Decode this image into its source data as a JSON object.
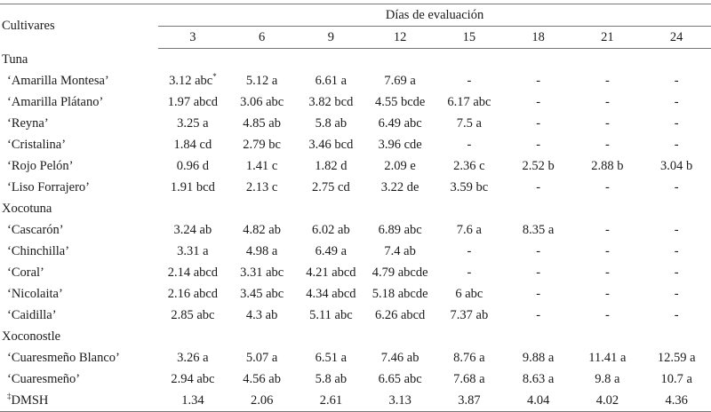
{
  "header": {
    "cultivares": "Cultivares",
    "dias": "Días de evaluación",
    "days": [
      "3",
      "6",
      "9",
      "12",
      "15",
      "18",
      "21",
      "24"
    ]
  },
  "groups": [
    {
      "name": "Tuna",
      "rows": [
        {
          "name": "‘Amarilla Montesa’",
          "values": [
            "3.12 abc",
            "5.12 a",
            "6.61 a",
            "7.69 a",
            "-",
            "-",
            "-",
            "-"
          ],
          "sup": "*"
        },
        {
          "name": "‘Amarilla Plátano’",
          "values": [
            "1.97 abcd",
            "3.06 abc",
            "3.82 bcd",
            "4.55 bcde",
            "6.17 abc",
            "-",
            "-",
            "-"
          ]
        },
        {
          "name": "‘Reyna’",
          "values": [
            "3.25 a",
            "4.85 ab",
            "5.8 ab",
            "6.49 abc",
            "7.5 a",
            "-",
            "-",
            "-"
          ]
        },
        {
          "name": "‘Cristalina’",
          "values": [
            "1.84 cd",
            "2.79 bc",
            "3.46 bcd",
            "3.96 cde",
            "-",
            "-",
            "-",
            "-"
          ]
        },
        {
          "name": "‘Rojo Pelón’",
          "values": [
            "0.96 d",
            "1.41 c",
            "1.82 d",
            "2.09 e",
            "2.36 c",
            "2.52 b",
            "2.88 b",
            "3.04 b"
          ]
        },
        {
          "name": "‘Liso Forrajero’",
          "values": [
            "1.91 bcd",
            "2.13 c",
            "2.75 cd",
            "3.22 de",
            "3.59 bc",
            "-",
            "-",
            "-"
          ]
        }
      ]
    },
    {
      "name": "Xocotuna",
      "rows": [
        {
          "name": "‘Cascarón’",
          "values": [
            "3.24 ab",
            "4.82 ab",
            "6.02 ab",
            "6.89 abc",
            "7.6 a",
            "8.35 a",
            "-",
            "-"
          ]
        },
        {
          "name": "‘Chinchilla’",
          "values": [
            "3.31 a",
            "4.98 a",
            "6.49 a",
            "7.4 ab",
            "-",
            "-",
            "-",
            "-"
          ]
        },
        {
          "name": "‘Coral’",
          "values": [
            "2.14 abcd",
            "3.31 abc",
            "4.21 abcd",
            "4.79 abcde",
            "-",
            "-",
            "-",
            "-"
          ]
        },
        {
          "name": "‘Nicolaita’",
          "values": [
            "2.16 abcd",
            "3.45 abc",
            "4.34 abcd",
            "5.18 abcde",
            "6 abc",
            "-",
            "-",
            "-"
          ]
        },
        {
          "name": "‘Caidilla’",
          "values": [
            "2.85 abc",
            "4.3 ab",
            "5.11 abc",
            "6.26 abcd",
            "7.37 ab",
            "-",
            "-",
            "-"
          ]
        }
      ]
    },
    {
      "name": "Xoconostle",
      "rows": [
        {
          "name": "‘Cuaresmeño Blanco’",
          "values": [
            "3.26 a",
            "5.07 a",
            "6.51 a",
            "7.46 ab",
            "8.76 a",
            "9.88 a",
            "11.41 a",
            "12.59 a"
          ]
        },
        {
          "name": "‘Cuaresmeño’",
          "values": [
            "2.94 abc",
            "4.56 ab",
            "5.8 ab",
            "6.65 abc",
            "7.68 a",
            "8.63 a",
            "9.8 a",
            "10.7 a"
          ]
        }
      ]
    }
  ],
  "footer": {
    "sup": "‡",
    "name": "DMSH",
    "values": [
      "1.34",
      "2.06",
      "2.61",
      "3.13",
      "3.87",
      "4.04",
      "4.02",
      "4.36"
    ]
  }
}
